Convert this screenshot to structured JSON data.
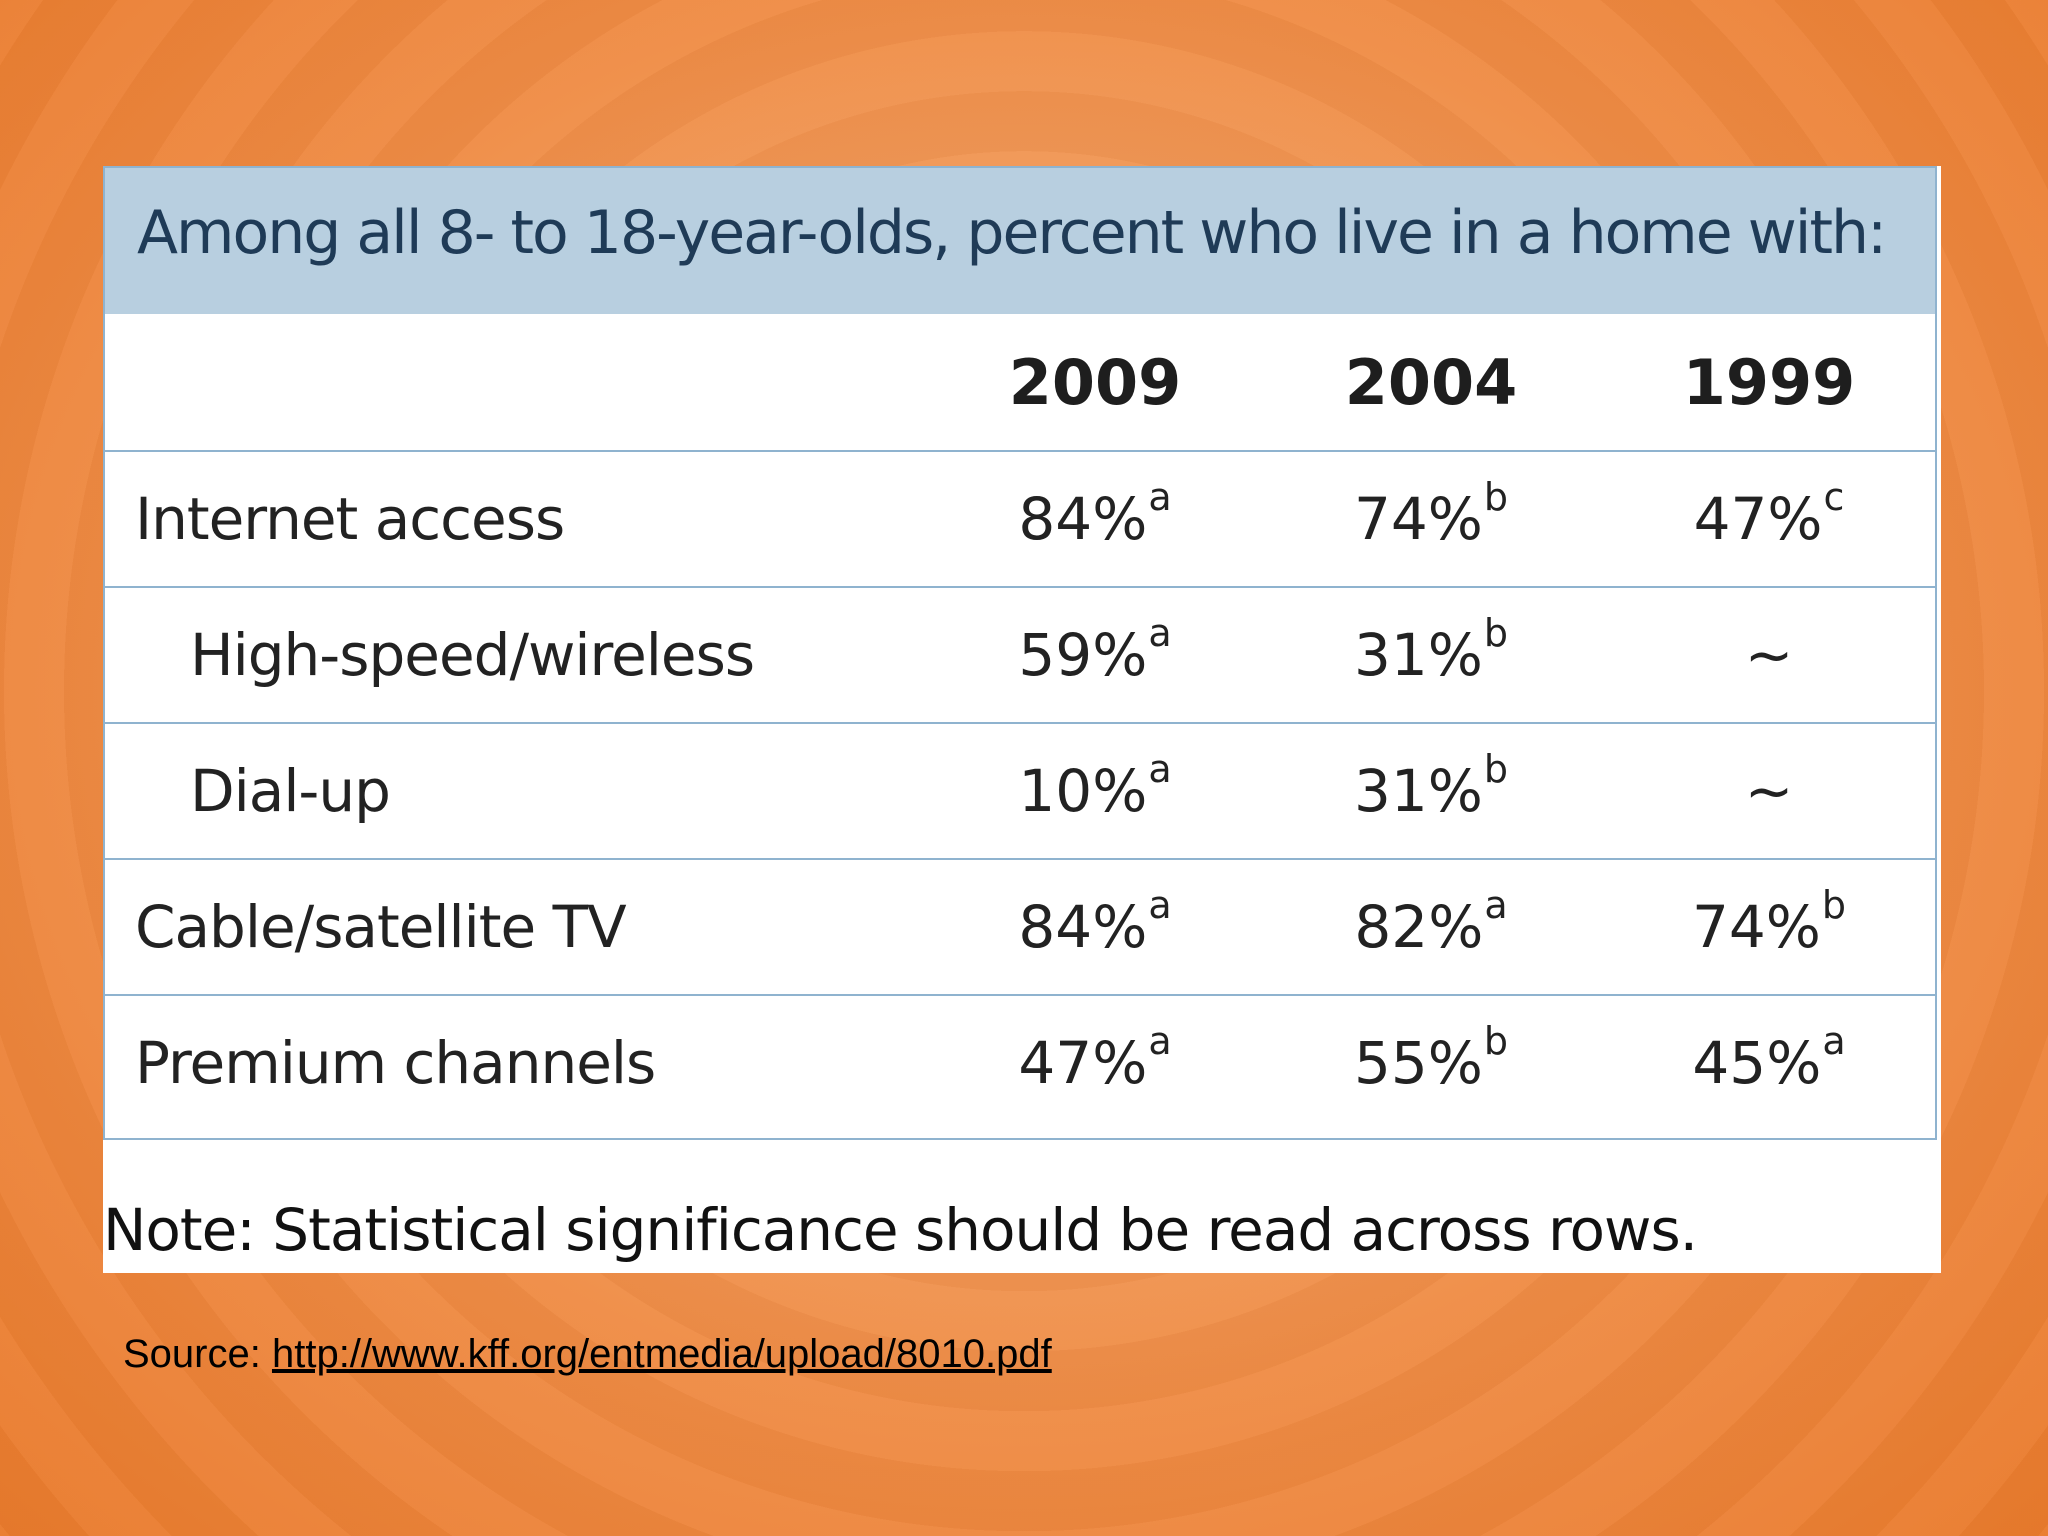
{
  "chart_data": {
    "type": "table",
    "title": "Among all 8- to 18-year-olds, percent who live in a home with:",
    "columns": [
      "2009",
      "2004",
      "1999"
    ],
    "rows": [
      {
        "label": "Internet access",
        "indent": false,
        "cells": [
          {
            "value": "84%",
            "sup": "a"
          },
          {
            "value": "74%",
            "sup": "b"
          },
          {
            "value": "47%",
            "sup": "c"
          }
        ]
      },
      {
        "label": "High-speed/wireless",
        "indent": true,
        "cells": [
          {
            "value": "59%",
            "sup": "a"
          },
          {
            "value": "31%",
            "sup": "b"
          },
          {
            "value": "~",
            "sup": ""
          }
        ]
      },
      {
        "label": "Dial-up",
        "indent": true,
        "cells": [
          {
            "value": "10%",
            "sup": "a"
          },
          {
            "value": "31%",
            "sup": "b"
          },
          {
            "value": "~",
            "sup": ""
          }
        ]
      },
      {
        "label": "Cable/satellite TV",
        "indent": false,
        "cells": [
          {
            "value": "84%",
            "sup": "a"
          },
          {
            "value": "82%",
            "sup": "a"
          },
          {
            "value": "74%",
            "sup": "b"
          }
        ]
      },
      {
        "label": "Premium channels",
        "indent": false,
        "cells": [
          {
            "value": "47%",
            "sup": "a"
          },
          {
            "value": "55%",
            "sup": "b"
          },
          {
            "value": "45%",
            "sup": "a"
          }
        ]
      }
    ],
    "note": "Note:  Statistical significance should be read across rows."
  },
  "source": {
    "label": "Source: ",
    "link_text": "http://www.kff.org/entmedia/upload/8010.pdf"
  },
  "colors": {
    "title_band": "#b8cfe0",
    "title_text": "#1f3b57",
    "grid_line": "#8fb3cf",
    "background": "#ef8c45"
  }
}
